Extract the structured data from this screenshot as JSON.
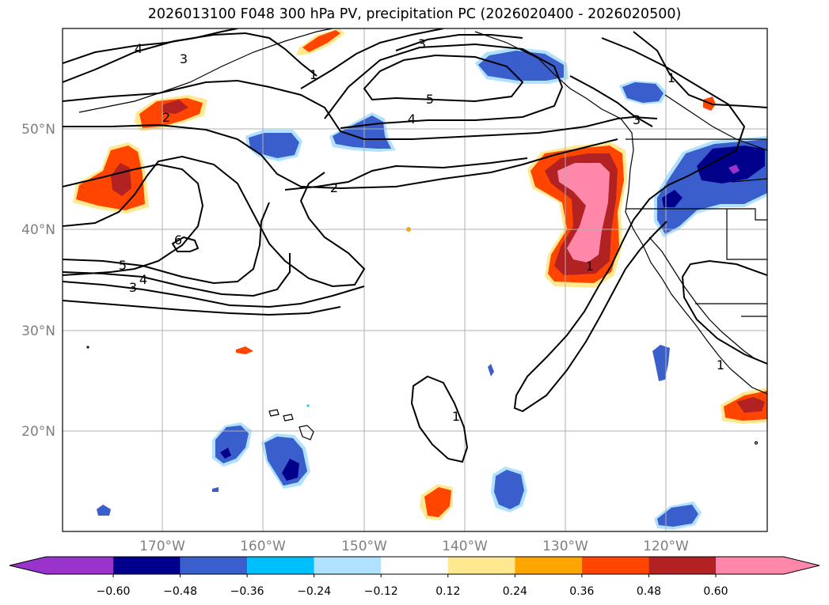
{
  "title": "2026013100 F048 300 hPa PV, precipitation PC (2026020400 - 2026020500)",
  "longitude_labels": [
    "170°W",
    "160°W",
    "150°W",
    "140°W",
    "130°W",
    "120°W"
  ],
  "latitude_labels": [
    "50°N",
    "40°N",
    "30°N",
    "20°N"
  ],
  "colorbar": {
    "tick_labels": [
      "−0.60",
      "−0.48",
      "−0.36",
      "−0.24",
      "−0.12",
      "0.12",
      "0.24",
      "0.36",
      "0.48",
      "0.60"
    ],
    "colors": [
      "#9933cc",
      "#00008b",
      "#3a5fcd",
      "#00bfff",
      "#b0e2ff",
      "#ffffff",
      "#ffe990",
      "#ffa500",
      "#ff4500",
      "#b22222",
      "#ff88aa"
    ]
  },
  "pv_contour_labels": [
    "4",
    "3",
    "1",
    "2",
    "3",
    "5",
    "4",
    "2",
    "6",
    "5",
    "4",
    "3",
    "1",
    "1",
    "3",
    "1",
    "1"
  ]
}
